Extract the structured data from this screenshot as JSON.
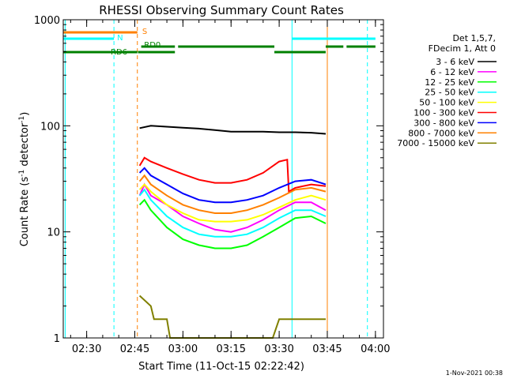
{
  "chart_data": {
    "type": "line",
    "title": "RHESSI Observing Summary Count Rates",
    "xlabel": "Start Time (11-Oct-15 02:22:42)",
    "ylabel_main": "Count Rate (s",
    "ylabel_sup1": "-1",
    "ylabel_mid": " detector",
    "ylabel_sup2": "-1",
    "ylabel_end": ")",
    "yscale": "log",
    "ylim": [
      1,
      1000
    ],
    "xlim": [
      "02:22:42",
      "04:02:30"
    ],
    "x_ticks": [
      "02:30",
      "02:45",
      "03:00",
      "03:15",
      "03:30",
      "03:45",
      "04:00"
    ],
    "y_ticks": [
      "1",
      "10",
      "100",
      "1000"
    ],
    "x_unit": "minutes after 02:00",
    "legend_header": [
      "Det 1,5,7,",
      "FDecim 1, Att 0"
    ],
    "series": [
      {
        "name": "3 - 6 keV",
        "color": "#000000",
        "x": [
          46.5,
          50,
          55,
          60,
          65,
          70,
          75,
          80,
          85,
          90,
          95,
          100,
          104.5
        ],
        "values": [
          95,
          100,
          98,
          96,
          94,
          91,
          88,
          88,
          88,
          87,
          87,
          86,
          84
        ]
      },
      {
        "name": "6 - 12 keV",
        "color": "#ff00ff",
        "x": [
          46.5,
          48,
          50,
          55,
          60,
          65,
          70,
          75,
          80,
          85,
          90,
          95,
          100,
          104.5
        ],
        "values": [
          22,
          28,
          22,
          18,
          14,
          12,
          10.5,
          10,
          11,
          13,
          16,
          19,
          19,
          16
        ]
      },
      {
        "name": "12 - 25 keV",
        "color": "#00ff00",
        "x": [
          46.5,
          48,
          50,
          55,
          60,
          65,
          70,
          75,
          80,
          85,
          90,
          95,
          100,
          104.5
        ],
        "values": [
          18,
          20,
          16,
          11,
          8.5,
          7.5,
          7,
          7,
          7.5,
          9,
          11,
          13.5,
          14,
          12
        ]
      },
      {
        "name": "25 - 50 keV",
        "color": "#00ffff",
        "x": [
          46.5,
          48,
          50,
          55,
          60,
          65,
          70,
          75,
          80,
          85,
          90,
          95,
          100,
          104.5
        ],
        "values": [
          22,
          25,
          20,
          14,
          11,
          9.5,
          9,
          9,
          9.5,
          11,
          13.5,
          16,
          16,
          14
        ]
      },
      {
        "name": "50 - 100 keV",
        "color": "#ffff00",
        "x": [
          46.5,
          48,
          50,
          55,
          60,
          65,
          70,
          75,
          80,
          85,
          90,
          95,
          100,
          104.5
        ],
        "values": [
          25,
          28,
          24,
          18,
          15,
          13,
          12.5,
          12.5,
          13,
          14.5,
          17,
          20,
          22,
          20
        ]
      },
      {
        "name": "100 - 300 keV",
        "color": "#ff0000",
        "x": [
          46.5,
          48,
          50,
          55,
          60,
          65,
          70,
          75,
          80,
          85,
          90,
          92.5,
          93,
          95,
          100,
          104.5
        ],
        "values": [
          42,
          50,
          46,
          40,
          35,
          31,
          29,
          29,
          31,
          36,
          46,
          48,
          24,
          26,
          28,
          27
        ]
      },
      {
        "name": "300 - 800 keV",
        "color": "#0000ff",
        "x": [
          46.5,
          48,
          50,
          55,
          60,
          65,
          70,
          75,
          80,
          85,
          90,
          95,
          100,
          104.5
        ],
        "values": [
          36,
          40,
          34,
          28,
          23,
          20,
          19,
          19,
          20,
          22,
          26,
          30,
          31,
          28
        ]
      },
      {
        "name": "800 - 7000 keV",
        "color": "#ff8000",
        "x": [
          46.5,
          48,
          50,
          55,
          60,
          65,
          70,
          75,
          80,
          85,
          90,
          95,
          100,
          104.5
        ],
        "values": [
          30,
          34,
          28,
          22,
          18,
          16,
          15,
          15,
          16,
          18,
          21,
          25,
          26,
          24
        ]
      },
      {
        "name": "7000 - 15000 keV",
        "color": "#808000",
        "x": [
          46.5,
          50,
          51,
          55,
          56,
          60,
          64,
          70,
          80,
          88,
          90,
          95,
          100,
          104.5
        ],
        "values": [
          2.5,
          2,
          1.5,
          1.5,
          1,
          1,
          1,
          1,
          1,
          1,
          1.5,
          1.5,
          1.5,
          1.5
        ]
      }
    ],
    "flag_bars": [
      {
        "label": "S",
        "color": "#ff8000",
        "segments": [
          [
            22.7,
            45.8
          ]
        ]
      },
      {
        "label": "N",
        "color": "#00ffff",
        "segments": [
          [
            22.7,
            38.5
          ],
          [
            94,
            120
          ]
        ]
      },
      {
        "label": "RD0",
        "color": "#008000",
        "segments": [
          [
            47,
            57.5
          ],
          [
            58.5,
            88.5
          ],
          [
            104.5,
            110
          ],
          [
            111,
            120
          ]
        ]
      },
      {
        "label": "RD6",
        "color": "#008000",
        "segments": [
          [
            22.7,
            45.8
          ],
          [
            46,
            57.5
          ],
          [
            88.5,
            104.5
          ]
        ]
      }
    ],
    "vlines": [
      {
        "x": 23.3,
        "color": "#00ffff",
        "style": "solid"
      },
      {
        "x": 38.5,
        "color": "#00ffff",
        "style": "dashed"
      },
      {
        "x": 45.8,
        "color": "#ff8000",
        "style": "dashed"
      },
      {
        "x": 94,
        "color": "#00ffff",
        "style": "solid"
      },
      {
        "x": 105,
        "color": "#ff8000",
        "style": "solid"
      },
      {
        "x": 117.5,
        "color": "#00ffff",
        "style": "dashed"
      }
    ],
    "footer": "1-Nov-2021 00:38"
  }
}
